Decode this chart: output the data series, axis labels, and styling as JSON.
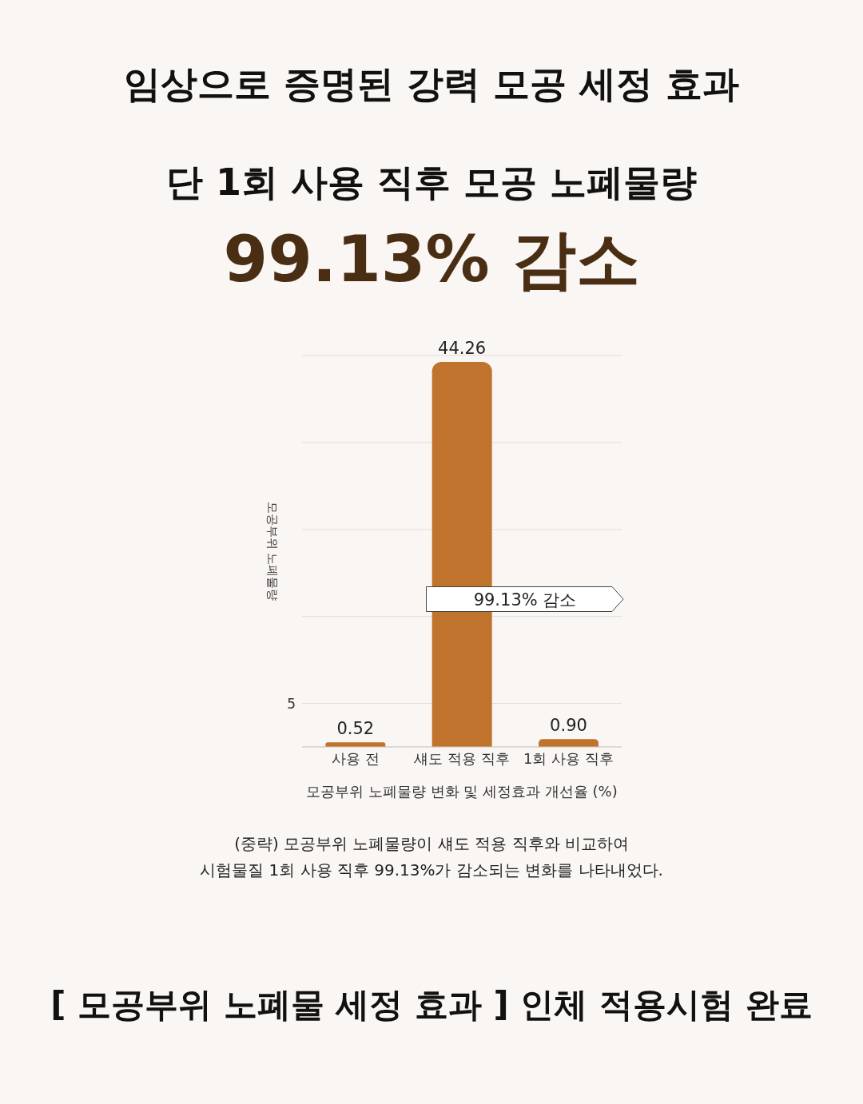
{
  "chart_data": {
    "type": "bar",
    "title": "임상으로 증명된 강력 모공 세정 효과",
    "subtitle": "단 1회 사용 직후 모공 노폐물량",
    "xlabel": "모공부위 노폐물량 변화 및 세정효과 개선율 (%)",
    "ylabel": "모공부위 노폐물량",
    "categories": [
      "사용 전",
      "섀도 적용 직후",
      "1회 사용 직후"
    ],
    "values": [
      0.52,
      44.26,
      0.9
    ],
    "color": "#c0732d",
    "ylim": [
      0,
      45
    ],
    "yticks": [
      {
        "value": 5,
        "label": "5"
      },
      {
        "value": 15,
        "label": null
      },
      {
        "value": 25,
        "label": null
      },
      {
        "value": 35,
        "label": null
      },
      {
        "value": 45,
        "label": null
      }
    ],
    "grid": "y",
    "value_labels": [
      "0.52",
      "44.26",
      "0.90"
    ],
    "annotations": [
      "99.13% 감소",
      "99.13% 감소",
      "(중략) 모공부위 노폐물량이 섀도 적용 직후와 비교하여\n시험물질 1회 사용 직후 99.13%가 감소되는 변화를 나타내었다.",
      "[ 모공부위 노폐물 세정 효과 ] 인체 적용시험 완료"
    ]
  }
}
